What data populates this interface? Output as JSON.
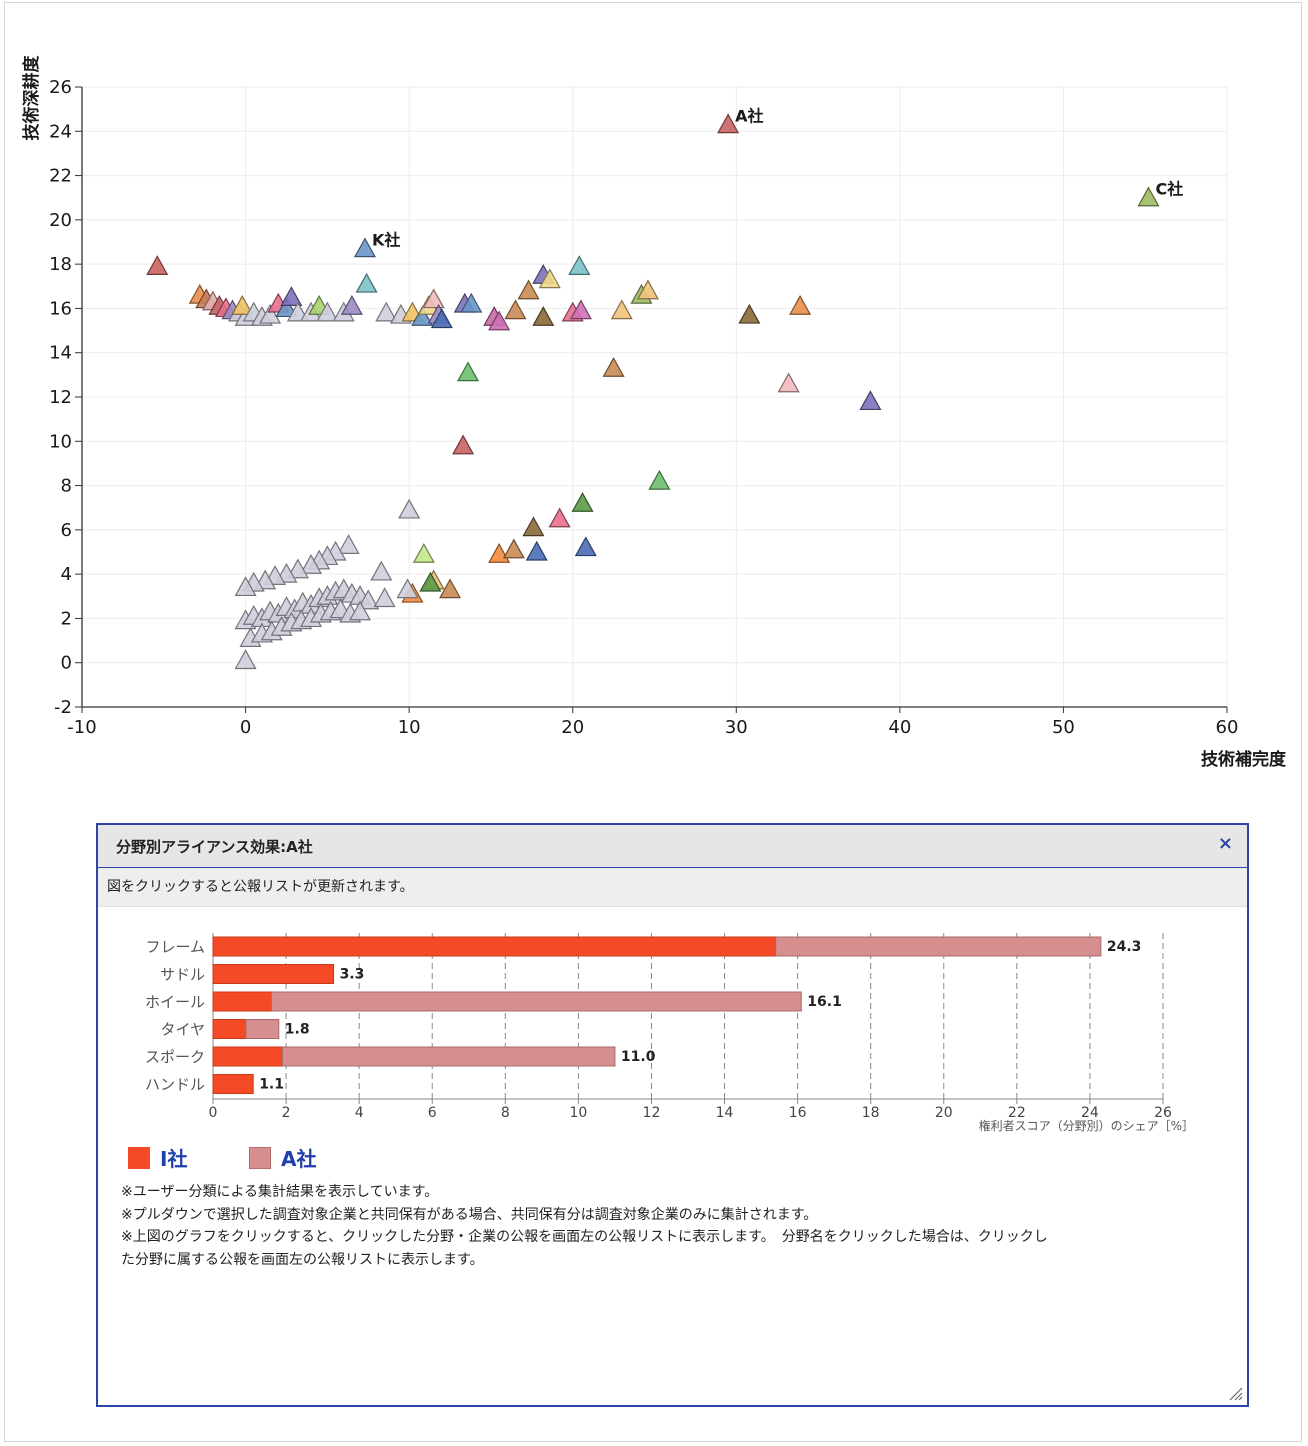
{
  "scatter": {
    "y_axis_title": "技術深耕度",
    "x_axis_title": "技術補完度",
    "chart_data": {
      "type": "scatter",
      "title": "",
      "xlabel": "技術補完度",
      "ylabel": "技術深耕度",
      "xlim": [
        -10,
        60
      ],
      "ylim": [
        -2,
        26
      ],
      "x_ticks": [
        "-10",
        "0",
        "10",
        "20",
        "30",
        "40",
        "50",
        "60"
      ],
      "y_ticks": [
        "-2",
        "0",
        "2",
        "4",
        "6",
        "8",
        "10",
        "12",
        "14",
        "16",
        "18",
        "20",
        "22",
        "24",
        "26"
      ],
      "grid": true,
      "marker": "triangle",
      "labeled_points": [
        {
          "label": "A社",
          "x": 29.5,
          "y": 24.3,
          "color": "#c86464"
        },
        {
          "label": "C社",
          "x": 55.2,
          "y": 21.0,
          "color": "#9dbb61"
        },
        {
          "label": "K社",
          "x": 7.3,
          "y": 18.7,
          "color": "#6a97c9"
        }
      ],
      "points": [
        {
          "x": -5.4,
          "y": 17.9,
          "color": "#c86464"
        },
        {
          "x": -2.8,
          "y": 16.6,
          "color": "#e88f4a"
        },
        {
          "x": -2.4,
          "y": 16.4,
          "color": "#c97b53"
        },
        {
          "x": -2.0,
          "y": 16.3,
          "color": "#e8b0b0"
        },
        {
          "x": -1.6,
          "y": 16.1,
          "color": "#c86464"
        },
        {
          "x": -1.2,
          "y": 16.0,
          "color": "#e86f8e"
        },
        {
          "x": -0.8,
          "y": 15.9,
          "color": "#9b8cc4"
        },
        {
          "x": -0.4,
          "y": 15.8,
          "color": "#cfcfdd"
        },
        {
          "x": 0.0,
          "y": 15.6,
          "color": "#cfcfdd"
        },
        {
          "x": -0.2,
          "y": 16.1,
          "color": "#f1c266"
        },
        {
          "x": 0.5,
          "y": 15.8,
          "color": "#cfcfdd"
        },
        {
          "x": 1.0,
          "y": 15.6,
          "color": "#cfcfdd"
        },
        {
          "x": 1.5,
          "y": 15.7,
          "color": "#cfcfdd"
        },
        {
          "x": 2.0,
          "y": 16.2,
          "color": "#e86f8e"
        },
        {
          "x": 2.5,
          "y": 16.0,
          "color": "#6a97c9"
        },
        {
          "x": 2.8,
          "y": 16.5,
          "color": "#7b72b8"
        },
        {
          "x": 3.2,
          "y": 15.8,
          "color": "#cfcfdd"
        },
        {
          "x": 4.0,
          "y": 15.8,
          "color": "#cfcfdd"
        },
        {
          "x": 4.5,
          "y": 16.1,
          "color": "#a8d36f"
        },
        {
          "x": 5.0,
          "y": 15.8,
          "color": "#cfcfdd"
        },
        {
          "x": 6.0,
          "y": 15.8,
          "color": "#cfcfdd"
        },
        {
          "x": 6.5,
          "y": 16.1,
          "color": "#9b8cc4"
        },
        {
          "x": 7.4,
          "y": 17.1,
          "color": "#7cc3c8"
        },
        {
          "x": 8.6,
          "y": 15.8,
          "color": "#cfcfdd"
        },
        {
          "x": 9.5,
          "y": 15.7,
          "color": "#cfcfdd"
        },
        {
          "x": 10.2,
          "y": 15.8,
          "color": "#f1c266"
        },
        {
          "x": 10.8,
          "y": 15.6,
          "color": "#6a97c9"
        },
        {
          "x": 11.2,
          "y": 16.1,
          "color": "#f1d98a"
        },
        {
          "x": 11.5,
          "y": 16.4,
          "color": "#f2b9bd"
        },
        {
          "x": 11.8,
          "y": 15.7,
          "color": "#9b8cc4"
        },
        {
          "x": 12.0,
          "y": 15.5,
          "color": "#4a6db5"
        },
        {
          "x": 13.4,
          "y": 16.2,
          "color": "#7b72b8"
        },
        {
          "x": 13.8,
          "y": 16.2,
          "color": "#6a97c9"
        },
        {
          "x": 15.2,
          "y": 15.6,
          "color": "#c96aa2"
        },
        {
          "x": 15.5,
          "y": 15.4,
          "color": "#d070b6"
        },
        {
          "x": 16.5,
          "y": 15.9,
          "color": "#c98b53"
        },
        {
          "x": 17.3,
          "y": 16.8,
          "color": "#c98b53"
        },
        {
          "x": 18.2,
          "y": 17.5,
          "color": "#7b72b8"
        },
        {
          "x": 18.6,
          "y": 17.3,
          "color": "#f1d98a"
        },
        {
          "x": 18.2,
          "y": 15.6,
          "color": "#8a6a3a"
        },
        {
          "x": 20.0,
          "y": 15.8,
          "color": "#e86f8e"
        },
        {
          "x": 20.4,
          "y": 17.9,
          "color": "#7cc3c8"
        },
        {
          "x": 20.5,
          "y": 15.9,
          "color": "#d070b6"
        },
        {
          "x": 23.0,
          "y": 15.9,
          "color": "#f1c27a"
        },
        {
          "x": 24.2,
          "y": 16.6,
          "color": "#9dbb61"
        },
        {
          "x": 24.6,
          "y": 16.8,
          "color": "#f1c27a"
        },
        {
          "x": 30.8,
          "y": 15.7,
          "color": "#8a6a3a"
        },
        {
          "x": 33.9,
          "y": 16.1,
          "color": "#e88f4a"
        },
        {
          "x": 22.5,
          "y": 13.3,
          "color": "#c98b53"
        },
        {
          "x": 33.2,
          "y": 12.6,
          "color": "#f2b9bd"
        },
        {
          "x": 38.2,
          "y": 11.8,
          "color": "#7b72b8"
        },
        {
          "x": 13.6,
          "y": 13.1,
          "color": "#6dc06d"
        },
        {
          "x": 13.3,
          "y": 9.8,
          "color": "#c86464"
        },
        {
          "x": 25.3,
          "y": 8.2,
          "color": "#6dc06d"
        },
        {
          "x": 10.0,
          "y": 6.9,
          "color": "#cfcfdd"
        },
        {
          "x": 20.6,
          "y": 7.2,
          "color": "#5c9a4a"
        },
        {
          "x": 17.6,
          "y": 6.1,
          "color": "#8a6a3a"
        },
        {
          "x": 19.2,
          "y": 6.5,
          "color": "#e86f8e"
        },
        {
          "x": 10.9,
          "y": 4.9,
          "color": "#c3e88a"
        },
        {
          "x": 15.5,
          "y": 4.9,
          "color": "#f28b3c"
        },
        {
          "x": 16.4,
          "y": 5.1,
          "color": "#c98b53"
        },
        {
          "x": 17.8,
          "y": 5.0,
          "color": "#4a6db5"
        },
        {
          "x": 20.8,
          "y": 5.2,
          "color": "#4a6db5"
        },
        {
          "x": 11.5,
          "y": 3.7,
          "color": "#f1c27a"
        },
        {
          "x": 11.3,
          "y": 3.6,
          "color": "#5c9a4a"
        },
        {
          "x": 12.5,
          "y": 3.3,
          "color": "#c98b53"
        },
        {
          "x": 10.2,
          "y": 3.1,
          "color": "#f28b3c"
        },
        {
          "x": 9.9,
          "y": 3.3,
          "color": "#cfcfdd"
        },
        {
          "x": 8.3,
          "y": 4.1,
          "color": "#cfcfdd"
        },
        {
          "x": 6.3,
          "y": 5.3,
          "color": "#cfcfdd"
        },
        {
          "x": 5.5,
          "y": 5.0,
          "color": "#cfcfdd"
        },
        {
          "x": 5.0,
          "y": 4.8,
          "color": "#cfcfdd"
        },
        {
          "x": 4.5,
          "y": 4.6,
          "color": "#cfcfdd"
        },
        {
          "x": 4.0,
          "y": 4.4,
          "color": "#cfcfdd"
        },
        {
          "x": 3.2,
          "y": 4.2,
          "color": "#cfcfdd"
        },
        {
          "x": 2.5,
          "y": 4.0,
          "color": "#cfcfdd"
        },
        {
          "x": 1.8,
          "y": 3.9,
          "color": "#cfcfdd"
        },
        {
          "x": 1.2,
          "y": 3.7,
          "color": "#cfcfdd"
        },
        {
          "x": 0.5,
          "y": 3.6,
          "color": "#cfcfdd"
        },
        {
          "x": 0.0,
          "y": 3.4,
          "color": "#cfcfdd"
        },
        {
          "x": 0.0,
          "y": 1.9,
          "color": "#cfcfdd"
        },
        {
          "x": 0.5,
          "y": 2.1,
          "color": "#cfcfdd"
        },
        {
          "x": 1.0,
          "y": 2.0,
          "color": "#cfcfdd"
        },
        {
          "x": 1.5,
          "y": 2.3,
          "color": "#cfcfdd"
        },
        {
          "x": 2.0,
          "y": 2.2,
          "color": "#cfcfdd"
        },
        {
          "x": 2.5,
          "y": 2.5,
          "color": "#cfcfdd"
        },
        {
          "x": 3.0,
          "y": 2.4,
          "color": "#cfcfdd"
        },
        {
          "x": 3.5,
          "y": 2.7,
          "color": "#cfcfdd"
        },
        {
          "x": 4.0,
          "y": 2.6,
          "color": "#cfcfdd"
        },
        {
          "x": 4.5,
          "y": 2.9,
          "color": "#cfcfdd"
        },
        {
          "x": 5.0,
          "y": 3.0,
          "color": "#cfcfdd"
        },
        {
          "x": 5.5,
          "y": 3.2,
          "color": "#cfcfdd"
        },
        {
          "x": 6.0,
          "y": 3.3,
          "color": "#cfcfdd"
        },
        {
          "x": 6.5,
          "y": 3.1,
          "color": "#cfcfdd"
        },
        {
          "x": 7.0,
          "y": 3.0,
          "color": "#cfcfdd"
        },
        {
          "x": 7.5,
          "y": 2.8,
          "color": "#cfcfdd"
        },
        {
          "x": 8.5,
          "y": 2.9,
          "color": "#cfcfdd"
        },
        {
          "x": 0.3,
          "y": 1.1,
          "color": "#cfcfdd"
        },
        {
          "x": 1.0,
          "y": 1.3,
          "color": "#cfcfdd"
        },
        {
          "x": 1.6,
          "y": 1.4,
          "color": "#cfcfdd"
        },
        {
          "x": 2.2,
          "y": 1.6,
          "color": "#cfcfdd"
        },
        {
          "x": 2.8,
          "y": 1.8,
          "color": "#cfcfdd"
        },
        {
          "x": 3.4,
          "y": 1.9,
          "color": "#cfcfdd"
        },
        {
          "x": 4.0,
          "y": 2.0,
          "color": "#cfcfdd"
        },
        {
          "x": 4.6,
          "y": 2.2,
          "color": "#cfcfdd"
        },
        {
          "x": 5.2,
          "y": 2.3,
          "color": "#cfcfdd"
        },
        {
          "x": 5.8,
          "y": 2.4,
          "color": "#cfcfdd"
        },
        {
          "x": 6.4,
          "y": 2.2,
          "color": "#cfcfdd"
        },
        {
          "x": 7.0,
          "y": 2.3,
          "color": "#cfcfdd"
        },
        {
          "x": 0.0,
          "y": 0.1,
          "color": "#cfcfdd"
        }
      ]
    }
  },
  "panel": {
    "title": "分野別アライアンス効果:A社",
    "close_icon": "×",
    "notice": "図をクリックすると公報リストが更新されます。",
    "chart_data": {
      "type": "bar",
      "orientation": "horizontal",
      "stacked": true,
      "title": "",
      "xlabel": "権利者スコア（分野別）のシェア［%］",
      "xlim": [
        0,
        26
      ],
      "x_ticks": [
        "0",
        "2",
        "4",
        "6",
        "8",
        "10",
        "12",
        "14",
        "16",
        "18",
        "20",
        "22",
        "24",
        "26"
      ],
      "categories": [
        "フレーム",
        "サドル",
        "ホイール",
        "タイヤ",
        "スポーク",
        "ハンドル"
      ],
      "series": [
        {
          "name": "I社",
          "color": "#f44a25",
          "values": [
            15.4,
            3.3,
            1.6,
            0.9,
            1.9,
            1.1
          ]
        },
        {
          "name": "A社",
          "color": "#d68e8e",
          "values": [
            8.9,
            0.0,
            14.5,
            0.9,
            9.1,
            0.0
          ]
        }
      ],
      "totals": [
        24.3,
        3.3,
        16.1,
        1.8,
        11.0,
        1.1
      ],
      "total_labels": [
        "24.3",
        "3.3",
        "16.1",
        "1.8",
        "11.0",
        "1.1"
      ],
      "grid": "vertical-dashed"
    },
    "legend": [
      {
        "label": "I社",
        "color": "#f44a25"
      },
      {
        "label": "A社",
        "color": "#d68e8e"
      }
    ],
    "notes": [
      "※ユーザー分類による集計結果を表示しています。",
      "※プルダウンで選択した調査対象企業と共同保有がある場合、共同保有分は調査対象企業のみに集計されます。",
      "※上図のグラフをクリックすると、クリックした分野・企業の公報を画面左の公報リストに表示します。　分野名をクリックした場合は、クリックし",
      "た分野に属する公報を画面左の公報リストに表示します。"
    ],
    "resize_icon": "resize-grip-icon"
  }
}
